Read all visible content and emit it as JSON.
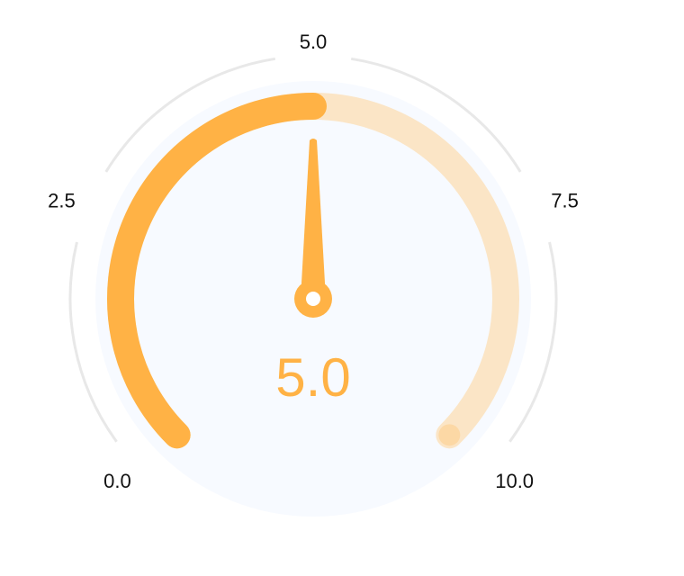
{
  "chart_data": {
    "type": "gauge",
    "value": 5.0,
    "value_text": "5.0",
    "min": 0,
    "max": 10,
    "ticks": [
      {
        "value": 0,
        "label": "0.0"
      },
      {
        "value": 2.5,
        "label": "2.5"
      },
      {
        "value": 5,
        "label": "5.0"
      },
      {
        "value": 7.5,
        "label": "7.5"
      },
      {
        "value": 10,
        "label": "10.0"
      }
    ],
    "colors": {
      "progress": "#ffb245",
      "track": "#fbe5c6",
      "pointer": "#ffb245",
      "value_text": "#ffb245",
      "dial_face": "#f7faff",
      "outer_ring": "#e8e8e8",
      "pointer_cap": "#ffffff"
    }
  }
}
